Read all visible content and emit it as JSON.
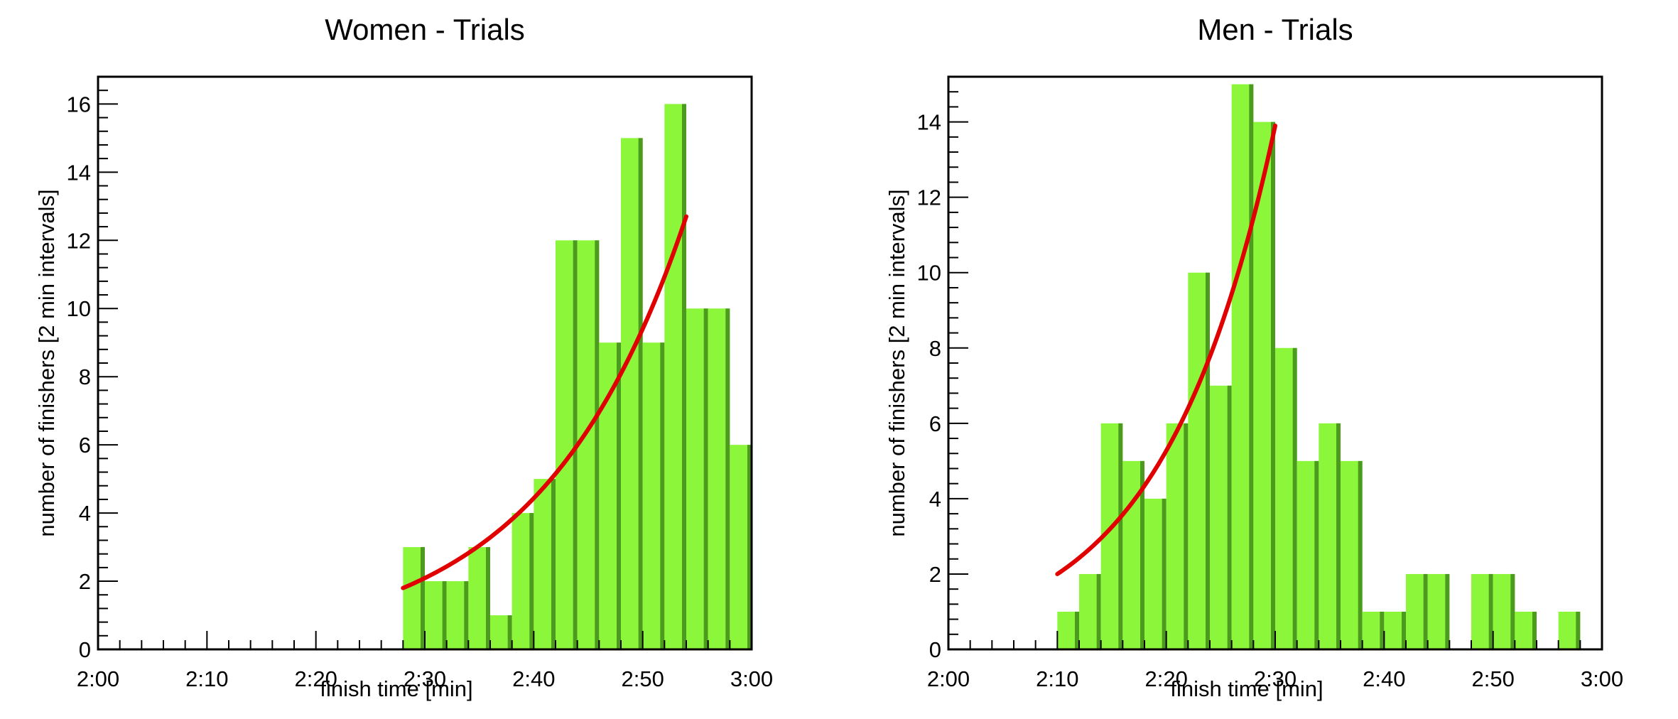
{
  "colors": {
    "bar_fill": "#8cf73a",
    "bar_edge": "#4c9a1e",
    "fit_line": "#e00000",
    "axes": "#000000"
  },
  "chart_data": [
    {
      "type": "bar",
      "title": "Women - Trials",
      "xlabel": "finish time [min]",
      "ylabel": "number of finishers [2 min intervals]",
      "xlim": [
        120,
        180
      ],
      "ylim": [
        0,
        16.8
      ],
      "grid": false,
      "bin_width_min": 2,
      "x_tick_values": [
        120,
        130,
        140,
        150,
        160,
        170,
        180
      ],
      "x_tick_labels": [
        "2:00",
        "2:10",
        "2:20",
        "2:30",
        "2:40",
        "2:50",
        "3:00"
      ],
      "y_ticks": [
        "0",
        "2",
        "4",
        "6",
        "8",
        "10",
        "12",
        "14",
        "16"
      ],
      "bins": [
        {
          "x": 148,
          "value": 3
        },
        {
          "x": 150,
          "value": 2
        },
        {
          "x": 152,
          "value": 2
        },
        {
          "x": 154,
          "value": 3
        },
        {
          "x": 156,
          "value": 1
        },
        {
          "x": 158,
          "value": 4
        },
        {
          "x": 160,
          "value": 5
        },
        {
          "x": 162,
          "value": 12
        },
        {
          "x": 164,
          "value": 12
        },
        {
          "x": 166,
          "value": 9
        },
        {
          "x": 168,
          "value": 15
        },
        {
          "x": 170,
          "value": 9
        },
        {
          "x": 172,
          "value": 16
        },
        {
          "x": 174,
          "value": 10
        },
        {
          "x": 176,
          "value": 10
        },
        {
          "x": 178,
          "value": 6
        }
      ],
      "fit": {
        "type": "exponential",
        "points": [
          [
            148,
            1.8
          ],
          [
            160,
            4.8
          ],
          [
            174,
            12.7
          ]
        ]
      }
    },
    {
      "type": "bar",
      "title": "Men - Trials",
      "xlabel": "finish time [min]",
      "ylabel": "number of finishers [2 min intervals]",
      "xlim": [
        120,
        180
      ],
      "ylim": [
        0,
        15.2
      ],
      "grid": false,
      "bin_width_min": 2,
      "x_tick_values": [
        120,
        130,
        140,
        150,
        160,
        170,
        180
      ],
      "x_tick_labels": [
        "2:00",
        "2:10",
        "2:20",
        "2:30",
        "2:40",
        "2:50",
        "3:00"
      ],
      "y_ticks": [
        "0",
        "2",
        "4",
        "6",
        "8",
        "10",
        "12",
        "14"
      ],
      "bins": [
        {
          "x": 130,
          "value": 1
        },
        {
          "x": 132,
          "value": 2
        },
        {
          "x": 134,
          "value": 6
        },
        {
          "x": 136,
          "value": 5
        },
        {
          "x": 138,
          "value": 4
        },
        {
          "x": 140,
          "value": 6
        },
        {
          "x": 142,
          "value": 10
        },
        {
          "x": 144,
          "value": 7
        },
        {
          "x": 146,
          "value": 15
        },
        {
          "x": 148,
          "value": 14
        },
        {
          "x": 150,
          "value": 8
        },
        {
          "x": 152,
          "value": 5
        },
        {
          "x": 154,
          "value": 6
        },
        {
          "x": 156,
          "value": 5
        },
        {
          "x": 158,
          "value": 1
        },
        {
          "x": 160,
          "value": 1
        },
        {
          "x": 162,
          "value": 2
        },
        {
          "x": 164,
          "value": 2
        },
        {
          "x": 168,
          "value": 2
        },
        {
          "x": 170,
          "value": 2
        },
        {
          "x": 172,
          "value": 1
        },
        {
          "x": 176,
          "value": 1
        }
      ],
      "fit": {
        "type": "exponential",
        "points": [
          [
            130,
            2.0
          ],
          [
            140,
            5.5
          ],
          [
            150,
            13.9
          ]
        ]
      }
    }
  ]
}
